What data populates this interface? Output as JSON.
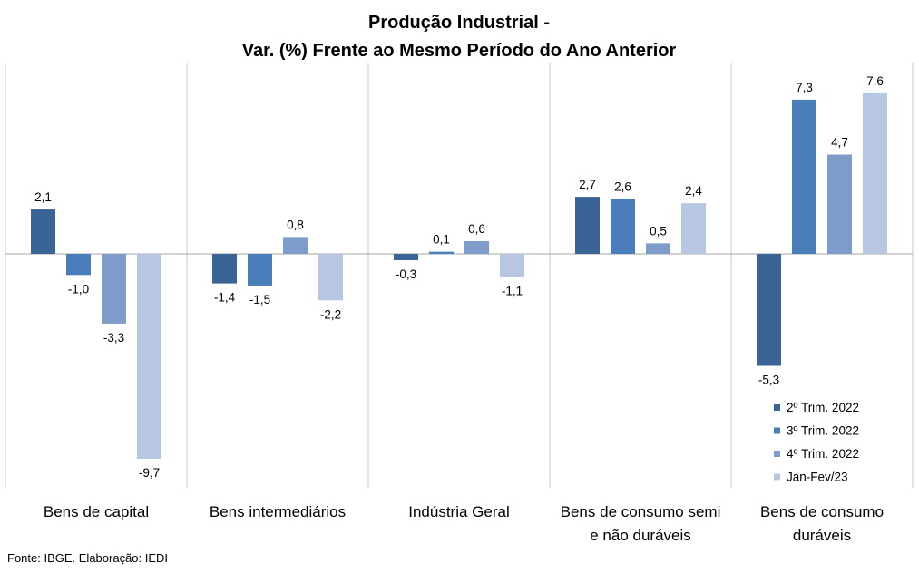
{
  "chart_data": {
    "type": "bar",
    "title": [
      "Produção Industrial -",
      "Var. (%)  Frente ao Mesmo Período do Ano Anterior"
    ],
    "categories": [
      [
        "Bens de capital"
      ],
      [
        "Bens intermediários"
      ],
      [
        "Indústria Geral"
      ],
      [
        "Bens de consumo semi",
        "e não duráveis"
      ],
      [
        "Bens de consumo",
        "duráveis"
      ]
    ],
    "series": [
      {
        "name": "2º Trim. 2022",
        "color": "#3B6496",
        "values": [
          2.1,
          -1.4,
          -0.3,
          2.7,
          -5.3
        ],
        "labels": [
          "2,1",
          "-1,4",
          "-0,3",
          "2,7",
          "-5,3"
        ]
      },
      {
        "name": "3º Trim. 2022",
        "color": "#4A7EBB",
        "values": [
          -1.0,
          -1.5,
          0.1,
          2.6,
          7.3
        ],
        "labels": [
          "-1,0",
          "-1,5",
          "0,1",
          "2,6",
          "7,3"
        ]
      },
      {
        "name": "4º Trim. 2022",
        "color": "#7E9CCB",
        "values": [
          -3.3,
          0.8,
          0.6,
          0.5,
          4.7
        ],
        "labels": [
          "-3,3",
          "0,8",
          "0,6",
          "0,5",
          "4,7"
        ]
      },
      {
        "name": "Jan-Fev/23",
        "color": "#B7C7E1",
        "values": [
          -9.7,
          -2.2,
          -1.1,
          2.4,
          7.6
        ],
        "labels": [
          "-9,7",
          "-2,2",
          "-1,1",
          "2,4",
          "7,6"
        ]
      }
    ],
    "ylim": [
      -11,
      9
    ],
    "grid": false,
    "legend_position": "bottom-right"
  },
  "source": "Fonte: IBGE. Elaboração: IEDI"
}
